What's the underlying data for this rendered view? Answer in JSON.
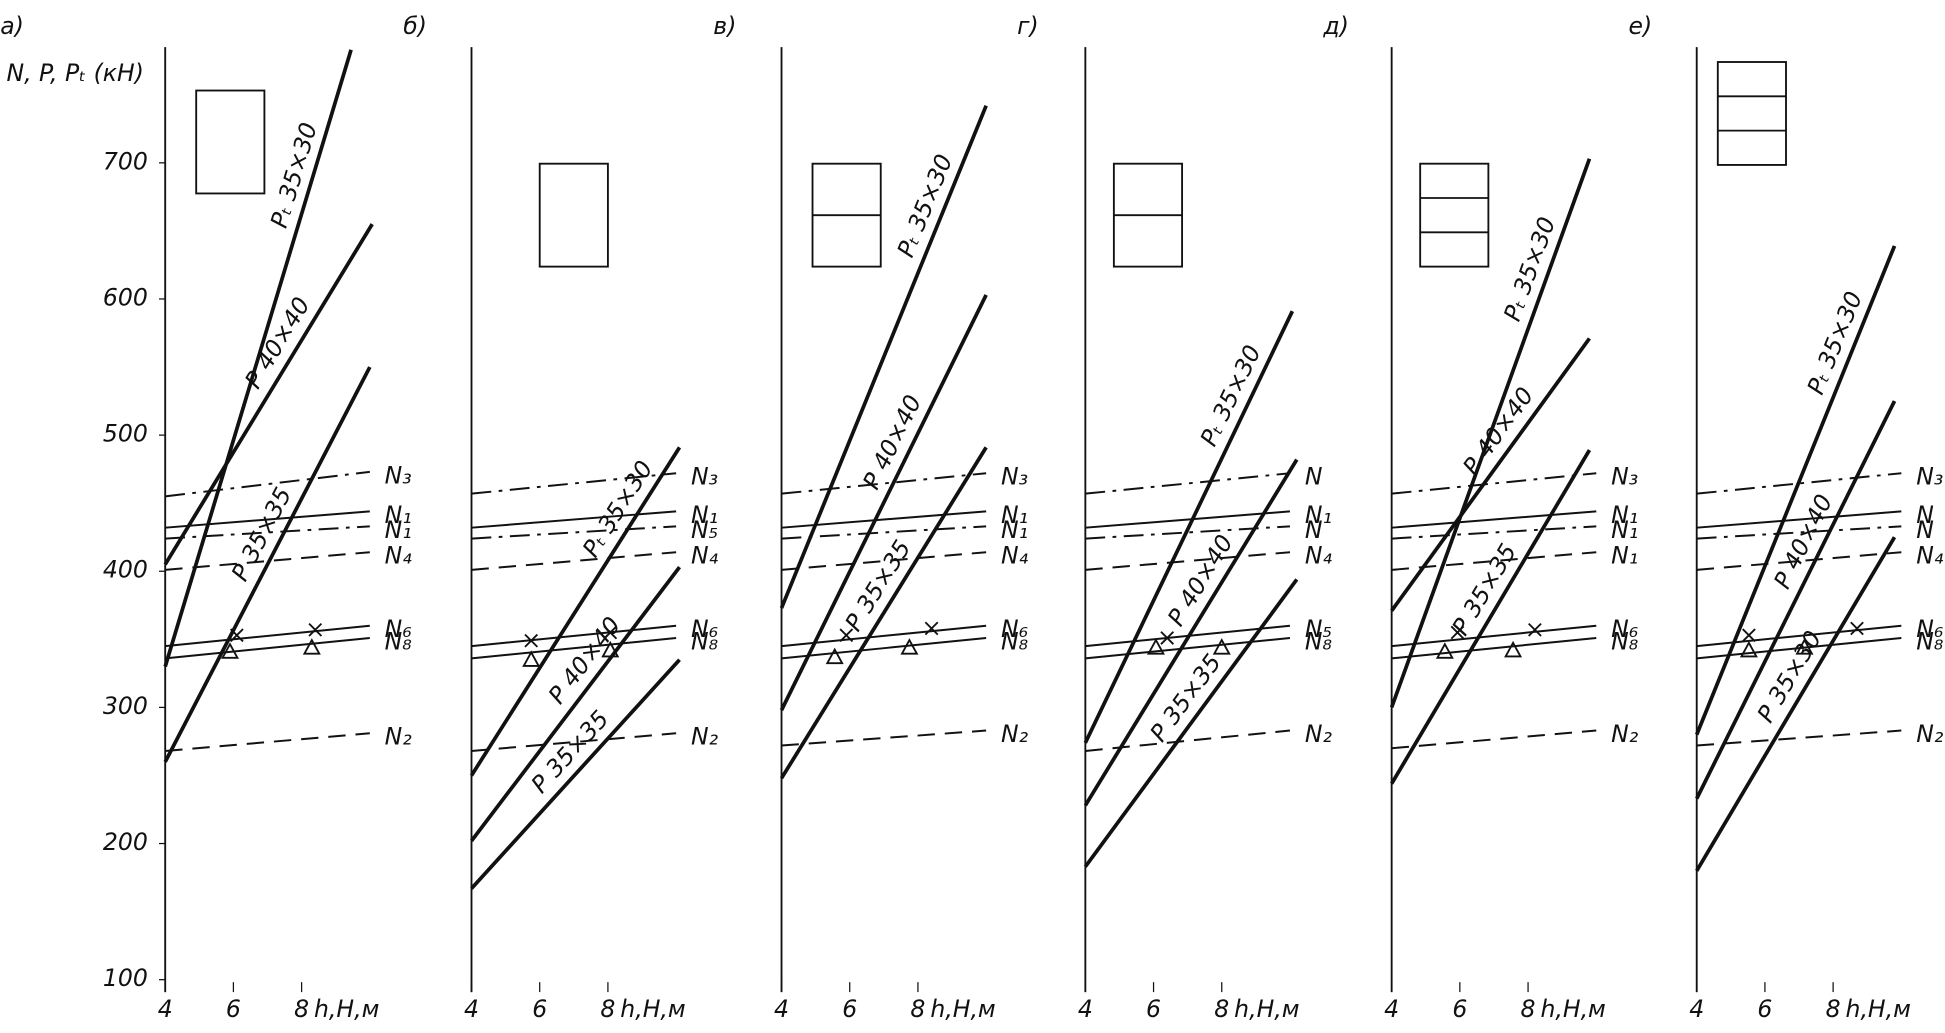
{
  "chart_data": [
    {
      "type": "line",
      "title": "а)",
      "ylabel": "N, P, Pₜ (кН)",
      "xlabel": "h,H,м",
      "xlim": [
        4,
        11
      ],
      "ylim": [
        100,
        785
      ],
      "xticks": [
        4,
        6,
        8
      ],
      "yticks": [
        100,
        200,
        300,
        400,
        500,
        600,
        700
      ],
      "series": [
        {
          "name": "Pₜ 35×30",
          "color": "#111",
          "style": "thick",
          "x": [
            4,
            9.45
          ],
          "values": [
            330,
            783
          ]
        },
        {
          "name": "P 40×40",
          "color": "#111",
          "style": "thick",
          "x": [
            4,
            10.07
          ],
          "values": [
            405,
            655
          ]
        },
        {
          "name": "P 35×35",
          "color": "#111",
          "style": "thick",
          "x": [
            4,
            10
          ],
          "values": [
            260,
            550
          ]
        },
        {
          "name": "N₃",
          "color": "#111",
          "style": "dashdot",
          "x": [
            4,
            10
          ],
          "values": [
            455,
            473
          ]
        },
        {
          "name": "N₁",
          "color": "#111",
          "style": "solid",
          "x": [
            4,
            10
          ],
          "values": [
            432,
            444
          ]
        },
        {
          "name": "N₁",
          "color": "#111",
          "style": "dashdot",
          "x": [
            4,
            10
          ],
          "values": [
            424,
            433
          ]
        },
        {
          "name": "N₄",
          "color": "#111",
          "style": "dash",
          "x": [
            4,
            10
          ],
          "values": [
            401,
            414
          ]
        },
        {
          "name": "N₆",
          "color": "#111",
          "style": "solid",
          "x": [
            4,
            10
          ],
          "values": [
            345,
            360
          ]
        },
        {
          "name": "N₈",
          "color": "#111",
          "style": "solid",
          "x": [
            4,
            10
          ],
          "values": [
            336,
            351
          ]
        },
        {
          "name": "N₂",
          "color": "#111",
          "style": "dash",
          "x": [
            4,
            10
          ],
          "values": [
            268,
            281
          ]
        }
      ],
      "markers": [
        {
          "symbol": "x",
          "x": [
            6.1,
            8.4
          ],
          "values": [
            353,
            357
          ]
        },
        {
          "symbol": "triangle",
          "x": [
            5.9,
            8.3
          ],
          "values": [
            341,
            344
          ]
        }
      ]
    },
    {
      "type": "line",
      "title": "б)",
      "xlabel": "h,H,м",
      "xlim": [
        4,
        11
      ],
      "ylim": [
        100,
        785
      ],
      "xticks": [
        4,
        6,
        8
      ],
      "series": [
        {
          "name": "Pₜ 35×30",
          "color": "#111",
          "style": "thick",
          "x": [
            4,
            10.1
          ],
          "values": [
            250,
            491
          ]
        },
        {
          "name": "P 40×40",
          "color": "#111",
          "style": "thick",
          "x": [
            4,
            10.1
          ],
          "values": [
            202,
            403
          ]
        },
        {
          "name": "P 35×35",
          "color": "#111",
          "style": "thick",
          "x": [
            4,
            10.1
          ],
          "values": [
            167,
            335
          ]
        },
        {
          "name": "N₃",
          "color": "#111",
          "style": "dashdot",
          "x": [
            4,
            10
          ],
          "values": [
            457,
            472
          ]
        },
        {
          "name": "N₁",
          "color": "#111",
          "style": "solid",
          "x": [
            4,
            10
          ],
          "values": [
            432,
            444
          ]
        },
        {
          "name": "N₅",
          "color": "#111",
          "style": "dashdot",
          "x": [
            4,
            10
          ],
          "values": [
            424,
            433
          ]
        },
        {
          "name": "N₄",
          "color": "#111",
          "style": "dash",
          "x": [
            4,
            10
          ],
          "values": [
            401,
            414
          ]
        },
        {
          "name": "N₆",
          "color": "#111",
          "style": "solid",
          "x": [
            4,
            10
          ],
          "values": [
            345,
            360
          ]
        },
        {
          "name": "N₈",
          "color": "#111",
          "style": "solid",
          "x": [
            4,
            10
          ],
          "values": [
            336,
            351
          ]
        },
        {
          "name": "N₂",
          "color": "#111",
          "style": "dash",
          "x": [
            4,
            10
          ],
          "values": [
            268,
            281
          ]
        }
      ],
      "markers": [
        {
          "symbol": "x",
          "x": [
            5.75,
            8.07
          ],
          "values": [
            349,
            355
          ]
        },
        {
          "symbol": "triangle",
          "x": [
            5.75,
            8.07
          ],
          "values": [
            335,
            342
          ]
        }
      ]
    },
    {
      "type": "line",
      "title": "в)",
      "xlabel": "h,H,м",
      "xlim": [
        4,
        11
      ],
      "ylim": [
        100,
        785
      ],
      "xticks": [
        4,
        6,
        8
      ],
      "series": [
        {
          "name": "Pₜ 35×30",
          "color": "#111",
          "style": "thick",
          "x": [
            4,
            10
          ],
          "values": [
            373,
            742
          ]
        },
        {
          "name": "P 40×40",
          "color": "#111",
          "style": "thick",
          "x": [
            4,
            10
          ],
          "values": [
            298,
            603
          ]
        },
        {
          "name": "P 35×35",
          "color": "#111",
          "style": "thick",
          "x": [
            4,
            10
          ],
          "values": [
            248,
            491
          ]
        },
        {
          "name": "N₃",
          "color": "#111",
          "style": "dashdot",
          "x": [
            4,
            10
          ],
          "values": [
            457,
            472
          ]
        },
        {
          "name": "N₁",
          "color": "#111",
          "style": "solid",
          "x": [
            4,
            10
          ],
          "values": [
            432,
            444
          ]
        },
        {
          "name": "N₁",
          "color": "#111",
          "style": "dashdot",
          "x": [
            4,
            10
          ],
          "values": [
            424,
            433
          ]
        },
        {
          "name": "N₄",
          "color": "#111",
          "style": "dash",
          "x": [
            4,
            10
          ],
          "values": [
            401,
            414
          ]
        },
        {
          "name": "N₆",
          "color": "#111",
          "style": "solid",
          "x": [
            4,
            10
          ],
          "values": [
            345,
            360
          ]
        },
        {
          "name": "N₈",
          "color": "#111",
          "style": "solid",
          "x": [
            4,
            10
          ],
          "values": [
            336,
            351
          ]
        },
        {
          "name": "N₂",
          "color": "#111",
          "style": "dash",
          "x": [
            4,
            10
          ],
          "values": [
            272,
            283
          ]
        }
      ],
      "markers": [
        {
          "symbol": "x",
          "x": [
            5.9,
            8.4
          ],
          "values": [
            353,
            358
          ]
        },
        {
          "symbol": "triangle",
          "x": [
            5.56,
            7.75
          ],
          "values": [
            337,
            344
          ]
        }
      ]
    },
    {
      "type": "line",
      "title": "г)",
      "xlabel": "h,H,м",
      "xlim": [
        4,
        11
      ],
      "ylim": [
        100,
        785
      ],
      "xticks": [
        4,
        6,
        8
      ],
      "series": [
        {
          "name": "Pₜ 35×30",
          "color": "#111",
          "style": "thick",
          "x": [
            4,
            10.07
          ],
          "values": [
            274,
            591
          ]
        },
        {
          "name": "P 40×40",
          "color": "#111",
          "style": "thick",
          "x": [
            4,
            10.2
          ],
          "values": [
            228,
            482
          ]
        },
        {
          "name": "P 35×35",
          "color": "#111",
          "style": "thick",
          "x": [
            4,
            10.2
          ],
          "values": [
            183,
            394
          ]
        },
        {
          "name": "N",
          "color": "#111",
          "style": "dashdot",
          "x": [
            4,
            10
          ],
          "values": [
            457,
            472
          ]
        },
        {
          "name": "N₁",
          "color": "#111",
          "style": "solid",
          "x": [
            4,
            10
          ],
          "values": [
            432,
            444
          ]
        },
        {
          "name": "N",
          "color": "#111",
          "style": "dashdot",
          "x": [
            4,
            10
          ],
          "values": [
            424,
            433
          ]
        },
        {
          "name": "N₄",
          "color": "#111",
          "style": "dash",
          "x": [
            4,
            10
          ],
          "values": [
            401,
            414
          ]
        },
        {
          "name": "N₅",
          "color": "#111",
          "style": "solid",
          "x": [
            4,
            10
          ],
          "values": [
            345,
            360
          ]
        },
        {
          "name": "N₈",
          "color": "#111",
          "style": "solid",
          "x": [
            4,
            10
          ],
          "values": [
            336,
            351
          ]
        },
        {
          "name": "N₂",
          "color": "#111",
          "style": "dash",
          "x": [
            4,
            10
          ],
          "values": [
            268,
            283
          ]
        }
      ],
      "markers": [
        {
          "symbol": "x",
          "x": [
            6.4
          ],
          "values": [
            351
          ]
        },
        {
          "symbol": "triangle",
          "x": [
            6.07,
            8
          ],
          "values": [
            344,
            344
          ]
        }
      ]
    },
    {
      "type": "line",
      "title": "д)",
      "xlabel": "h,H,м",
      "xlim": [
        4,
        11
      ],
      "ylim": [
        100,
        785
      ],
      "xticks": [
        4,
        6,
        8
      ],
      "series": [
        {
          "name": "Pₜ 35×30",
          "color": "#111",
          "style": "thick",
          "x": [
            4,
            9.8
          ],
          "values": [
            300,
            703
          ]
        },
        {
          "name": "P 40×40",
          "color": "#111",
          "style": "thick",
          "x": [
            4,
            9.8
          ],
          "values": [
            371,
            571
          ]
        },
        {
          "name": "P 35×35",
          "color": "#111",
          "style": "thick",
          "x": [
            4,
            9.8
          ],
          "values": [
            244,
            489
          ]
        },
        {
          "name": "N₃",
          "color": "#111",
          "style": "dashdot",
          "x": [
            4,
            10
          ],
          "values": [
            457,
            472
          ]
        },
        {
          "name": "N₁",
          "color": "#111",
          "style": "solid",
          "x": [
            4,
            10
          ],
          "values": [
            432,
            444
          ]
        },
        {
          "name": "N₁",
          "color": "#111",
          "style": "dashdot",
          "x": [
            4,
            10
          ],
          "values": [
            424,
            433
          ]
        },
        {
          "name": "N₁",
          "color": "#111",
          "style": "dash",
          "x": [
            4,
            10
          ],
          "values": [
            401,
            414
          ]
        },
        {
          "name": "N₆",
          "color": "#111",
          "style": "solid",
          "x": [
            4,
            10
          ],
          "values": [
            345,
            360
          ]
        },
        {
          "name": "N₈",
          "color": "#111",
          "style": "solid",
          "x": [
            4,
            10
          ],
          "values": [
            336,
            351
          ]
        },
        {
          "name": "N₂",
          "color": "#111",
          "style": "dash",
          "x": [
            4,
            10
          ],
          "values": [
            270,
            283
          ]
        }
      ],
      "markers": [
        {
          "symbol": "x",
          "x": [
            5.93,
            8.2
          ],
          "values": [
            355,
            357
          ]
        },
        {
          "symbol": "triangle",
          "x": [
            5.56,
            7.56
          ],
          "values": [
            341,
            342
          ]
        }
      ]
    },
    {
      "type": "line",
      "title": "е)",
      "xlabel": "h,H,м",
      "xlim": [
        4,
        11
      ],
      "ylim": [
        100,
        785
      ],
      "xticks": [
        4,
        6,
        8
      ],
      "series": [
        {
          "name": "Pₜ 35×30",
          "color": "#111",
          "style": "thick",
          "x": [
            4,
            9.8
          ],
          "values": [
            280,
            639
          ]
        },
        {
          "name": "P 40×40",
          "color": "#111",
          "style": "thick",
          "x": [
            4,
            9.8
          ],
          "values": [
            233,
            525
          ]
        },
        {
          "name": "P 35×30",
          "color": "#111",
          "style": "thick",
          "x": [
            4,
            9.8
          ],
          "values": [
            180,
            425
          ]
        },
        {
          "name": "N₃",
          "color": "#111",
          "style": "dashdot",
          "x": [
            4,
            10
          ],
          "values": [
            457,
            472
          ]
        },
        {
          "name": "N",
          "color": "#111",
          "style": "solid",
          "x": [
            4,
            10
          ],
          "values": [
            432,
            444
          ]
        },
        {
          "name": "N",
          "color": "#111",
          "style": "dashdot",
          "x": [
            4,
            10
          ],
          "values": [
            424,
            433
          ]
        },
        {
          "name": "N₄",
          "color": "#111",
          "style": "dash",
          "x": [
            4,
            10
          ],
          "values": [
            401,
            414
          ]
        },
        {
          "name": "N₆",
          "color": "#111",
          "style": "solid",
          "x": [
            4,
            10
          ],
          "values": [
            345,
            360
          ]
        },
        {
          "name": "N₈",
          "color": "#111",
          "style": "solid",
          "x": [
            4,
            10
          ],
          "values": [
            336,
            351
          ]
        },
        {
          "name": "N₂",
          "color": "#111",
          "style": "dash",
          "x": [
            4,
            10
          ],
          "values": [
            272,
            283
          ]
        }
      ],
      "markers": [
        {
          "symbol": "x",
          "x": [
            5.53,
            8.7
          ],
          "values": [
            353,
            358
          ]
        },
        {
          "symbol": "triangle",
          "x": [
            5.53,
            7.16
          ],
          "values": [
            342,
            344
          ]
        }
      ]
    }
  ]
}
